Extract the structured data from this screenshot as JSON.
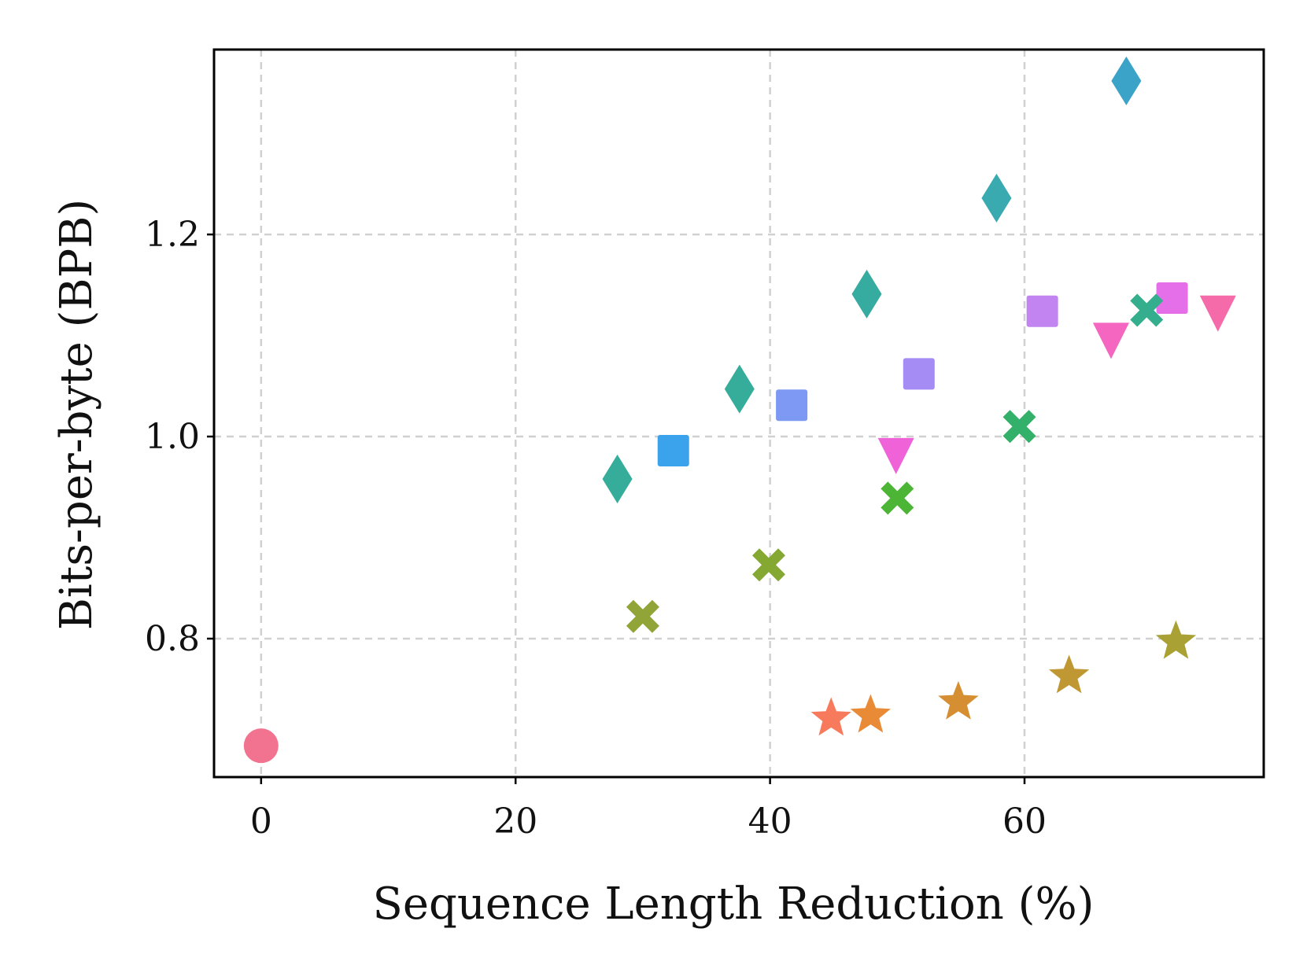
{
  "chart_data": {
    "type": "scatter",
    "title": "",
    "xlabel": "Sequence Length Reduction (%)",
    "ylabel": "Bits-per-byte (BPB)",
    "xlim": [
      -3.7,
      78.8
    ],
    "ylim": [
      0.663,
      1.383
    ],
    "xticks": [
      0,
      20,
      40,
      60
    ],
    "yticks": [
      0.8,
      1.0,
      1.2
    ],
    "xtick_labels": [
      "0",
      "20",
      "40",
      "60"
    ],
    "ytick_labels": [
      "0.8",
      "1.0",
      "1.2"
    ],
    "grid": true,
    "points": [
      {
        "x": 0.0,
        "y": 0.694,
        "marker": "circle",
        "color": "#f27390"
      },
      {
        "x": 28.0,
        "y": 0.958,
        "marker": "diamond",
        "color": "#36ad9a"
      },
      {
        "x": 37.6,
        "y": 1.047,
        "marker": "diamond",
        "color": "#36ad9a"
      },
      {
        "x": 47.6,
        "y": 1.141,
        "marker": "diamond",
        "color": "#36ab9f"
      },
      {
        "x": 57.8,
        "y": 1.236,
        "marker": "diamond",
        "color": "#38aab0"
      },
      {
        "x": 68.0,
        "y": 1.352,
        "marker": "diamond",
        "color": "#3ba3c8"
      },
      {
        "x": 32.4,
        "y": 0.986,
        "marker": "square",
        "color": "#3ba3ec"
      },
      {
        "x": 41.7,
        "y": 1.031,
        "marker": "square",
        "color": "#7e99f4"
      },
      {
        "x": 51.7,
        "y": 1.062,
        "marker": "square",
        "color": "#a48cf4"
      },
      {
        "x": 61.4,
        "y": 1.124,
        "marker": "square",
        "color": "#c184f1"
      },
      {
        "x": 71.6,
        "y": 1.137,
        "marker": "square",
        "color": "#e56ee9"
      },
      {
        "x": 49.9,
        "y": 0.983,
        "marker": "triangle",
        "color": "#f062d8"
      },
      {
        "x": 66.8,
        "y": 1.097,
        "marker": "triangle",
        "color": "#f466bf"
      },
      {
        "x": 75.2,
        "y": 1.124,
        "marker": "triangle",
        "color": "#f56ba9"
      },
      {
        "x": 30.0,
        "y": 0.822,
        "marker": "x",
        "color": "#91a437"
      },
      {
        "x": 39.9,
        "y": 0.873,
        "marker": "x",
        "color": "#84a832"
      },
      {
        "x": 50.0,
        "y": 0.939,
        "marker": "x",
        "color": "#4db536"
      },
      {
        "x": 59.6,
        "y": 1.01,
        "marker": "x",
        "color": "#33b069"
      },
      {
        "x": 69.6,
        "y": 1.125,
        "marker": "x",
        "color": "#34ae8c"
      },
      {
        "x": 44.8,
        "y": 0.721,
        "marker": "star",
        "color": "#f77a5c"
      },
      {
        "x": 47.9,
        "y": 0.724,
        "marker": "star",
        "color": "#e98a36"
      },
      {
        "x": 54.8,
        "y": 0.737,
        "marker": "star",
        "color": "#d58f32"
      },
      {
        "x": 63.5,
        "y": 0.763,
        "marker": "star",
        "color": "#c09833"
      },
      {
        "x": 71.9,
        "y": 0.797,
        "marker": "star",
        "color": "#aaa135"
      }
    ]
  }
}
